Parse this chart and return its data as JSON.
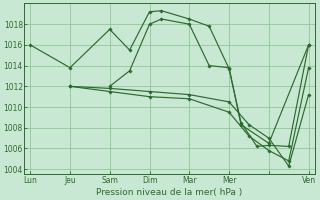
{
  "background_color": "#c8e8d4",
  "grid_color": "#90c898",
  "line_color": "#2d6a2d",
  "marker_color": "#2d6a2d",
  "xlabel": "Pression niveau de la mer( hPa )",
  "xtick_labels": [
    "Lun",
    "Jeu",
    "Sam",
    "Dim",
    "Mar",
    "Mer",
    "",
    "Ven"
  ],
  "xtick_positions": [
    0,
    1,
    2,
    3,
    4,
    5,
    6,
    7
  ],
  "xlim": [
    -0.15,
    7.15
  ],
  "ylim": [
    1003.5,
    1020.0
  ],
  "ytick_values": [
    1004,
    1006,
    1008,
    1010,
    1012,
    1014,
    1016,
    1018
  ],
  "lines": [
    {
      "comment": "top arc line: Lun->Jeu->Sam->Dim->Dim+->Mar->Mar+->Mer->Mer+->Ven",
      "x": [
        0,
        1,
        2,
        2.5,
        3,
        3.3,
        4,
        4.5,
        5,
        5.3,
        5.7,
        6,
        6.5,
        7
      ],
      "y": [
        1016,
        1013.8,
        1017.5,
        1015.5,
        1019.2,
        1019.3,
        1018.5,
        1017.8,
        1013.7,
        1008.5,
        1006.2,
        1006.3,
        1006.2,
        1016
      ]
    },
    {
      "comment": "second line: Sam->Dim->Mar->Mer->Ven",
      "x": [
        2,
        2.5,
        3,
        3.3,
        4,
        4.5,
        5,
        5.3,
        6,
        7
      ],
      "y": [
        1012,
        1013.5,
        1018.0,
        1018.5,
        1018.0,
        1014.0,
        1013.8,
        1008.3,
        1006.5,
        1016
      ]
    },
    {
      "x": [
        1,
        2,
        3,
        4,
        5,
        5.5,
        6,
        6.5,
        7
      ],
      "y": [
        1012,
        1011.8,
        1011.5,
        1011.2,
        1010.5,
        1008.3,
        1007.0,
        1004.3,
        1011.2
      ]
    },
    {
      "x": [
        1,
        2,
        3,
        4,
        5,
        5.5,
        6,
        6.5,
        7
      ],
      "y": [
        1012,
        1011.5,
        1011.0,
        1010.8,
        1009.5,
        1007.2,
        1005.8,
        1004.8,
        1013.8
      ]
    }
  ]
}
